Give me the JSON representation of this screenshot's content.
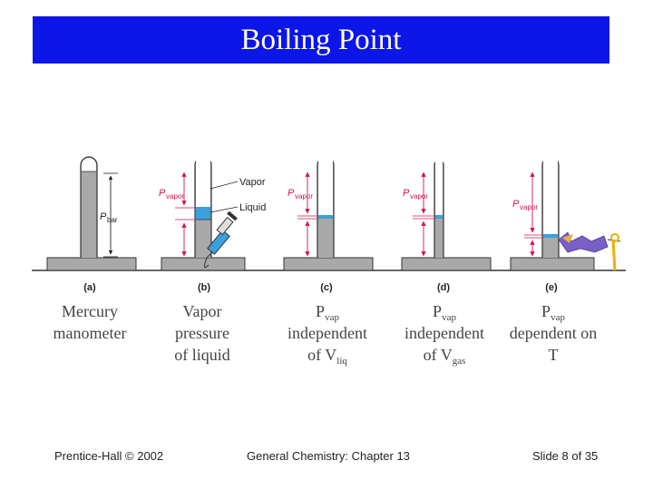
{
  "slide": {
    "title": "Boiling Point",
    "footer_left": "Prentice-Hall © 2002",
    "footer_center": "General Chemistry: Chapter 13",
    "footer_right": "Slide 8 of 35"
  },
  "figure": {
    "panel_labels": [
      "(a)",
      "(b)",
      "(c)",
      "(d)",
      "(e)"
    ],
    "label_p": "P",
    "label_bar": "bar",
    "label_vapor_sub": "vapor",
    "label_vapor": "Vapor",
    "label_liquid": "Liquid",
    "colors": {
      "mercury": "#a9a9a9",
      "liquid": "#3aa0dc",
      "outline": "#333333",
      "arrow": "#d2154b",
      "flame": "#7b5fc8"
    }
  },
  "captions": [
    {
      "line1": "Mercury",
      "line2": "manometer"
    },
    {
      "line1": "Vapor",
      "line2": "pressure",
      "line3": "of liquid"
    },
    {
      "p": "P",
      "p_sub": "vap",
      "line2": "independent",
      "line3": "of V",
      "line3_sub": "liq"
    },
    {
      "p": "P",
      "p_sub": "vap",
      "line2": "independent",
      "line3": "of V",
      "line3_sub": "gas"
    },
    {
      "p": "P",
      "p_sub": "vap",
      "line2": "dependent on",
      "line3": "T"
    }
  ]
}
